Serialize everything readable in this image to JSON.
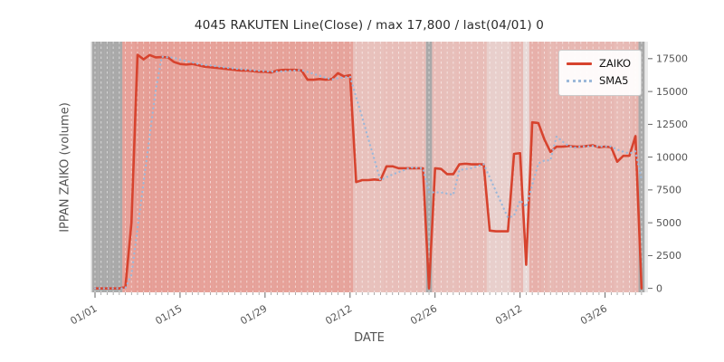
{
  "figure": {
    "title": "4045 RAKUTEN Line(Close) / max 17,800 / last(04/01) 0",
    "xlabel": "DATE",
    "ylabel": "IPPAN ZAIKO (volume)"
  },
  "legend": {
    "position": "upper right",
    "entries": [
      {
        "label": "ZAIKO",
        "color": "#d7432e",
        "style": "solid"
      },
      {
        "label": "SMA5",
        "color": "#9cb8d9",
        "style": "dotted"
      }
    ]
  },
  "chart_data": {
    "type": "line",
    "title": "4045 RAKUTEN Line(Close) / max 17,800 / last(04/01) 0",
    "xlabel": "DATE",
    "ylabel": "IPPAN ZAIKO (volume)",
    "x_start": "01/01",
    "x_end": "04/01",
    "points_are_daily": true,
    "n_points": 91,
    "x_tick_labels": [
      "01/01",
      "01/15",
      "01/29",
      "02/12",
      "02/26",
      "03/12",
      "03/26"
    ],
    "x_tick_day_index": [
      0,
      14,
      28,
      42,
      56,
      70,
      84
    ],
    "yticks": [
      0,
      2500,
      5000,
      7500,
      10000,
      12500,
      15000,
      17500
    ],
    "ylim": [
      -300,
      18800
    ],
    "grid": "vertical white dashed line per day",
    "legend_position": "upper right",
    "max_value": 17800,
    "last_value": 0,
    "series": [
      {
        "name": "ZAIKO",
        "color": "#d7432e",
        "style": "solid",
        "width": 2.6,
        "values": [
          0,
          0,
          0,
          0,
          0,
          100,
          5000,
          17800,
          17450,
          17780,
          17600,
          17620,
          17600,
          17250,
          17100,
          17050,
          17100,
          17000,
          16900,
          16850,
          16800,
          16750,
          16700,
          16650,
          16600,
          16600,
          16550,
          16500,
          16500,
          16450,
          16600,
          16650,
          16650,
          16650,
          16600,
          15900,
          15900,
          15950,
          15900,
          15950,
          16400,
          16150,
          16250,
          8100,
          8250,
          8250,
          8300,
          8250,
          9300,
          9300,
          9150,
          9150,
          9150,
          9150,
          9150,
          0,
          9150,
          9100,
          8700,
          8700,
          9450,
          9500,
          9450,
          9450,
          9450,
          4400,
          4350,
          4350,
          4350,
          10250,
          10300,
          1800,
          12650,
          12600,
          11350,
          10400,
          10800,
          10800,
          10850,
          10800,
          10800,
          10850,
          10900,
          10750,
          10800,
          10750,
          9650,
          10100,
          10100,
          11600,
          0
        ]
      },
      {
        "name": "SMA5",
        "color": "#9cb8d9",
        "style": "dotted",
        "width": 2.3,
        "derived_from": "ZAIKO",
        "window": 5
      }
    ],
    "background_bands": {
      "mode": "one vertical band per day, intensity follows value",
      "zero_value_days": [
        0,
        1,
        2,
        3,
        4,
        55,
        90
      ],
      "zero_value_color": "#a9a9a9",
      "heat_rgb": [
        226,
        74,
        56
      ],
      "alpha_min": 0.06,
      "alpha_scale": 0.42,
      "heat_overrides": {
        "5": 0.95,
        "6": 0.95
      },
      "plot_background": "#eaeaea"
    }
  }
}
